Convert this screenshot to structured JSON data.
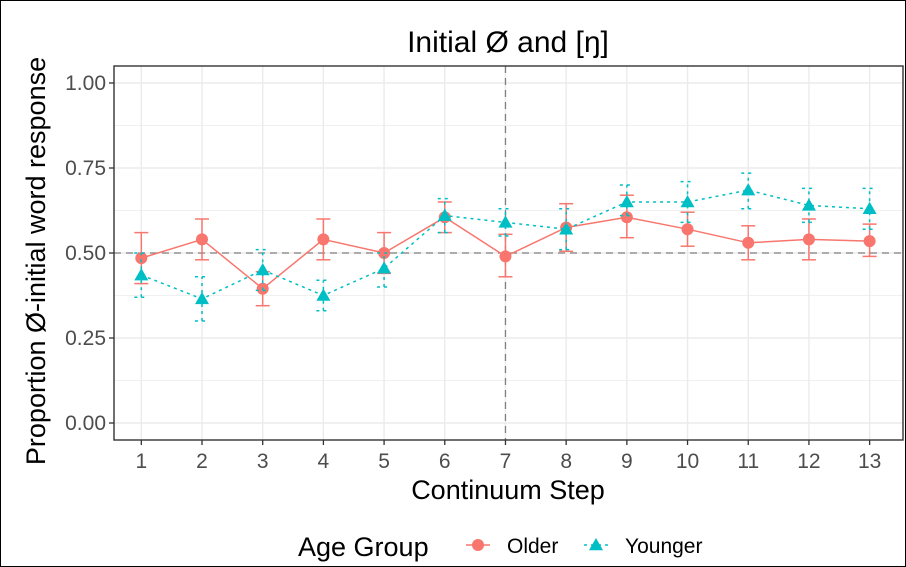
{
  "chart_data": {
    "type": "line",
    "title": "Initial Ø and [ŋ]",
    "xlabel": "Continuum Step",
    "ylabel": "Proportion Ø-initial word response",
    "x": [
      1,
      2,
      3,
      4,
      5,
      6,
      7,
      8,
      9,
      10,
      11,
      12,
      13
    ],
    "xlim": [
      0.55,
      13.55
    ],
    "ylim": [
      -0.05,
      1.05
    ],
    "yticks": [
      "0.00",
      "0.25",
      "0.50",
      "0.75",
      "1.00"
    ],
    "reference_lines": {
      "h": 0.5,
      "v": 7
    },
    "grid": true,
    "legend": {
      "title": "Age Group",
      "placement": "bottom"
    },
    "series": [
      {
        "name": "Older",
        "color": "#F8766D",
        "marker": "circle",
        "line": "solid",
        "values": [
          0.485,
          0.54,
          0.395,
          0.54,
          0.5,
          0.605,
          0.49,
          0.575,
          0.605,
          0.57,
          0.53,
          0.54,
          0.535
        ],
        "err_low": [
          0.41,
          0.48,
          0.345,
          0.48,
          0.44,
          0.56,
          0.43,
          0.505,
          0.545,
          0.52,
          0.48,
          0.48,
          0.49
        ],
        "err_high": [
          0.56,
          0.6,
          0.445,
          0.6,
          0.56,
          0.65,
          0.555,
          0.645,
          0.67,
          0.62,
          0.58,
          0.6,
          0.585
        ]
      },
      {
        "name": "Younger",
        "color": "#00BFC4",
        "marker": "triangle",
        "line": "dotted",
        "values": [
          0.435,
          0.365,
          0.45,
          0.375,
          0.455,
          0.61,
          0.59,
          0.57,
          0.65,
          0.65,
          0.685,
          0.64,
          0.63
        ],
        "err_low": [
          0.37,
          0.3,
          0.39,
          0.33,
          0.4,
          0.56,
          0.55,
          0.51,
          0.61,
          0.59,
          0.63,
          0.59,
          0.57
        ],
        "err_high": [
          0.5,
          0.43,
          0.51,
          0.42,
          0.5,
          0.66,
          0.63,
          0.63,
          0.7,
          0.71,
          0.735,
          0.69,
          0.69
        ]
      }
    ]
  }
}
